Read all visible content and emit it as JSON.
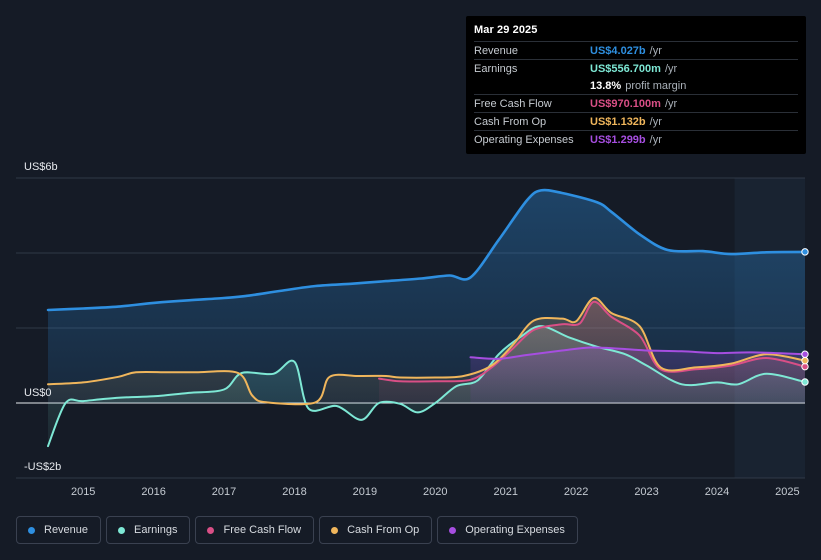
{
  "chart_data": {
    "type": "line",
    "ylabels": {
      "top": "US$6b",
      "zero": "US$0",
      "bottom": "-US$2b"
    },
    "ylim": [
      -2,
      6
    ],
    "xlim": [
      2014.5,
      2025.25
    ],
    "years": [
      "2015",
      "2016",
      "2017",
      "2018",
      "2019",
      "2020",
      "2021",
      "2022",
      "2023",
      "2024",
      "2025"
    ],
    "series": [
      {
        "name": "Revenue",
        "key": "revenue",
        "color": "#2e8fe0",
        "points": [
          [
            2014.5,
            2.48
          ],
          [
            2015.0,
            2.52
          ],
          [
            2015.5,
            2.57
          ],
          [
            2016.0,
            2.67
          ],
          [
            2016.5,
            2.74
          ],
          [
            2017.0,
            2.8
          ],
          [
            2017.3,
            2.85
          ],
          [
            2017.8,
            2.99
          ],
          [
            2018.3,
            3.12
          ],
          [
            2018.8,
            3.18
          ],
          [
            2019.3,
            3.25
          ],
          [
            2019.8,
            3.32
          ],
          [
            2020.2,
            3.4
          ],
          [
            2020.5,
            3.35
          ],
          [
            2020.9,
            4.35
          ],
          [
            2021.3,
            5.4
          ],
          [
            2021.5,
            5.67
          ],
          [
            2021.8,
            5.6
          ],
          [
            2022.3,
            5.35
          ],
          [
            2022.5,
            5.1
          ],
          [
            2022.9,
            4.5
          ],
          [
            2023.3,
            4.08
          ],
          [
            2023.8,
            4.05
          ],
          [
            2024.2,
            3.97
          ],
          [
            2024.7,
            4.02
          ],
          [
            2025.25,
            4.03
          ]
        ]
      },
      {
        "name": "Earnings",
        "key": "earnings",
        "color": "#7ee8d5",
        "points": [
          [
            2014.5,
            -1.15
          ],
          [
            2014.75,
            0.0
          ],
          [
            2015.0,
            0.05
          ],
          [
            2015.5,
            0.14
          ],
          [
            2016.0,
            0.18
          ],
          [
            2016.5,
            0.27
          ],
          [
            2017.0,
            0.36
          ],
          [
            2017.25,
            0.8
          ],
          [
            2017.7,
            0.78
          ],
          [
            2018.0,
            1.1
          ],
          [
            2018.2,
            -0.15
          ],
          [
            2018.6,
            -0.08
          ],
          [
            2018.95,
            -0.45
          ],
          [
            2019.2,
            0.0
          ],
          [
            2019.5,
            -0.02
          ],
          [
            2019.75,
            -0.25
          ],
          [
            2020.0,
            0.0
          ],
          [
            2020.3,
            0.45
          ],
          [
            2020.6,
            0.6
          ],
          [
            2020.9,
            1.3
          ],
          [
            2021.2,
            1.75
          ],
          [
            2021.5,
            2.05
          ],
          [
            2021.9,
            1.75
          ],
          [
            2022.3,
            1.5
          ],
          [
            2022.7,
            1.3
          ],
          [
            2023.0,
            1.0
          ],
          [
            2023.5,
            0.5
          ],
          [
            2024.0,
            0.55
          ],
          [
            2024.3,
            0.5
          ],
          [
            2024.7,
            0.78
          ],
          [
            2025.25,
            0.56
          ]
        ]
      },
      {
        "name": "Free Cash Flow",
        "key": "fcf",
        "color": "#d94f86",
        "points": [
          [
            2019.2,
            0.65
          ],
          [
            2019.5,
            0.58
          ],
          [
            2020.0,
            0.58
          ],
          [
            2020.5,
            0.62
          ],
          [
            2020.8,
            0.95
          ],
          [
            2021.1,
            1.45
          ],
          [
            2021.4,
            1.95
          ],
          [
            2021.8,
            2.1
          ],
          [
            2022.05,
            2.12
          ],
          [
            2022.25,
            2.7
          ],
          [
            2022.5,
            2.3
          ],
          [
            2022.9,
            1.8
          ],
          [
            2023.2,
            0.9
          ],
          [
            2023.7,
            0.9
          ],
          [
            2024.2,
            1.0
          ],
          [
            2024.7,
            1.2
          ],
          [
            2025.25,
            0.97
          ]
        ]
      },
      {
        "name": "Cash From Op",
        "key": "cfo",
        "color": "#f0b65c",
        "points": [
          [
            2014.5,
            0.5
          ],
          [
            2015.0,
            0.55
          ],
          [
            2015.5,
            0.7
          ],
          [
            2015.75,
            0.82
          ],
          [
            2016.2,
            0.82
          ],
          [
            2016.6,
            0.82
          ],
          [
            2017.2,
            0.8
          ],
          [
            2017.4,
            0.2
          ],
          [
            2017.6,
            0.02
          ],
          [
            2018.3,
            0.02
          ],
          [
            2018.5,
            0.7
          ],
          [
            2018.9,
            0.72
          ],
          [
            2019.3,
            0.72
          ],
          [
            2019.5,
            0.68
          ],
          [
            2020.0,
            0.68
          ],
          [
            2020.4,
            0.72
          ],
          [
            2020.8,
            1.0
          ],
          [
            2021.1,
            1.55
          ],
          [
            2021.4,
            2.2
          ],
          [
            2021.8,
            2.25
          ],
          [
            2022.0,
            2.18
          ],
          [
            2022.25,
            2.8
          ],
          [
            2022.5,
            2.4
          ],
          [
            2022.9,
            2.05
          ],
          [
            2023.2,
            0.95
          ],
          [
            2023.7,
            0.95
          ],
          [
            2024.2,
            1.05
          ],
          [
            2024.7,
            1.3
          ],
          [
            2025.25,
            1.13
          ]
        ]
      },
      {
        "name": "Operating Expenses",
        "key": "opex",
        "color": "#a64ee0",
        "points": [
          [
            2020.5,
            1.22
          ],
          [
            2020.9,
            1.18
          ],
          [
            2021.3,
            1.28
          ],
          [
            2021.8,
            1.4
          ],
          [
            2022.2,
            1.48
          ],
          [
            2022.6,
            1.45
          ],
          [
            2023.0,
            1.4
          ],
          [
            2023.5,
            1.38
          ],
          [
            2024.0,
            1.33
          ],
          [
            2024.5,
            1.35
          ],
          [
            2025.25,
            1.3
          ]
        ]
      }
    ]
  },
  "tooltip": {
    "date": "Mar 29 2025",
    "rows": [
      {
        "label": "Revenue",
        "value": "US$4.027b",
        "unit": "/yr",
        "color": "#2e8fe0"
      },
      {
        "label": "Earnings",
        "value": "US$556.700m",
        "unit": "/yr",
        "color": "#7ee8d5"
      },
      {
        "label": "",
        "value": "13.8%",
        "unit": "profit margin",
        "color": "#ffffff"
      },
      {
        "label": "Free Cash Flow",
        "value": "US$970.100m",
        "unit": "/yr",
        "color": "#d94f86"
      },
      {
        "label": "Cash From Op",
        "value": "US$1.132b",
        "unit": "/yr",
        "color": "#f0b65c"
      },
      {
        "label": "Operating Expenses",
        "value": "US$1.299b",
        "unit": "/yr",
        "color": "#a64ee0"
      }
    ]
  },
  "legend": [
    {
      "label": "Revenue",
      "color": "#2e8fe0"
    },
    {
      "label": "Earnings",
      "color": "#7ee8d5"
    },
    {
      "label": "Free Cash Flow",
      "color": "#d94f86"
    },
    {
      "label": "Cash From Op",
      "color": "#f0b65c"
    },
    {
      "label": "Operating Expenses",
      "color": "#a64ee0"
    }
  ]
}
